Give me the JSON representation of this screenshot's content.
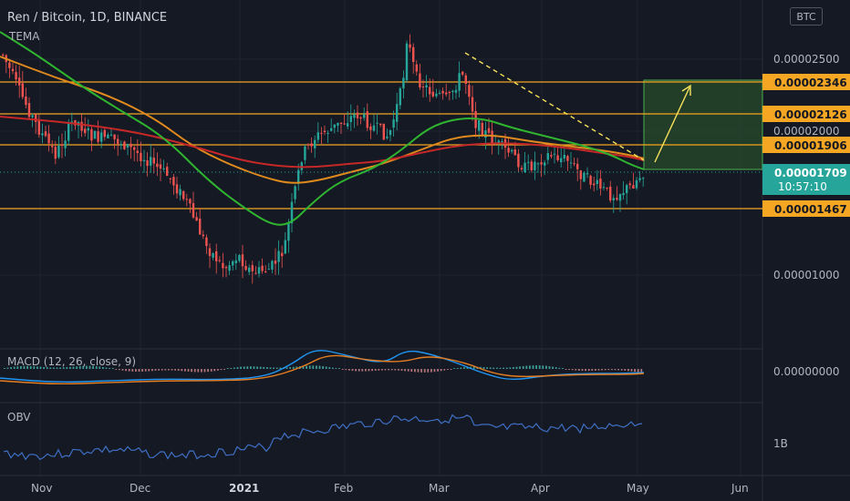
{
  "header": {
    "symbol_title": "Ren / Bitcoin, 1D, BINANCE",
    "overlay_label": "TEMA",
    "currency_badge": "BTC"
  },
  "price_axis": {
    "ticks": [
      "0.00002500",
      "0.00002000",
      "0.00001000"
    ],
    "levels": [
      {
        "label": "0.00002346",
        "color": "#f5a623"
      },
      {
        "label": "0.00002126",
        "color": "#f5a623"
      },
      {
        "label": "0.00001906",
        "color": "#f5a623"
      },
      {
        "label": "0.00001467",
        "color": "#f5a623"
      }
    ],
    "current": {
      "price": "0.00001709",
      "countdown": "10:57:10",
      "color": "#26a69a"
    }
  },
  "macd": {
    "title": "MACD (12, 26, close, 9)",
    "axis_label": "0.00000000"
  },
  "obv": {
    "title": "OBV",
    "axis_label": "1B"
  },
  "time_axis": {
    "labels": [
      {
        "text": "Nov",
        "bold": false
      },
      {
        "text": "Dec",
        "bold": false
      },
      {
        "text": "2021",
        "bold": true
      },
      {
        "text": "Feb",
        "bold": false
      },
      {
        "text": "Mar",
        "bold": false
      },
      {
        "text": "Apr",
        "bold": false
      },
      {
        "text": "May",
        "bold": false
      },
      {
        "text": "Jun",
        "bold": false
      }
    ]
  },
  "colors": {
    "background": "#151924",
    "bull_candle": "#26a69a",
    "bear_candle": "#ef5350",
    "level_line": "#f5a623",
    "ema_green": "#2fb52f",
    "ema_orange": "#e08a1e",
    "ema_red": "#c62828",
    "target_box": "#2e5d2e",
    "trendline": "#f7e15a",
    "macd_line": "#2196f3",
    "signal_line": "#e67e22",
    "obv_line": "#3f6fc4"
  }
}
